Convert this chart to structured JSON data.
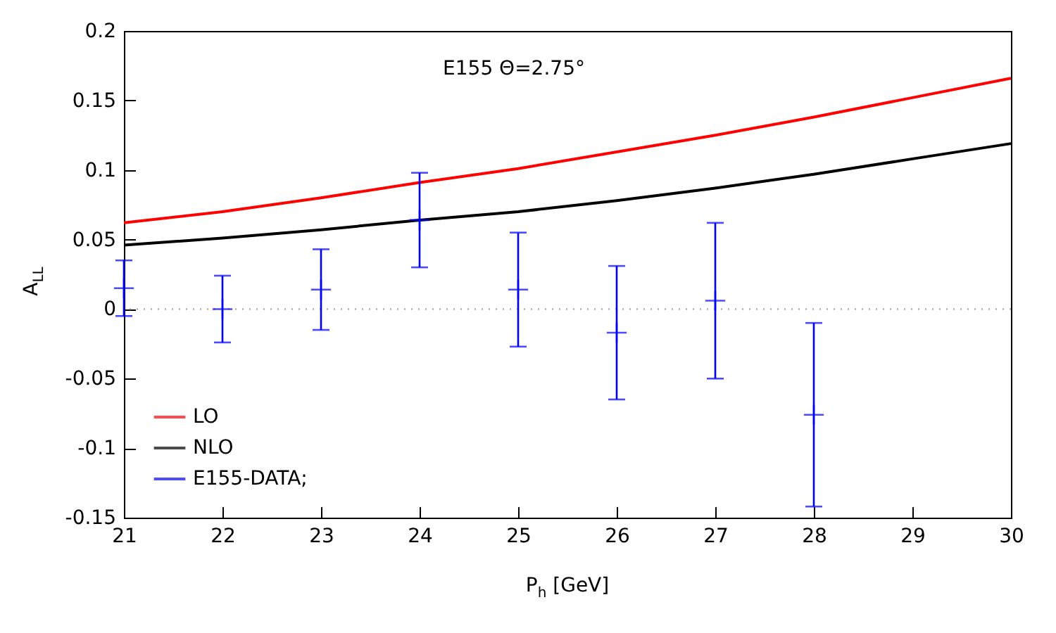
{
  "chart_data": {
    "type": "line",
    "xlabel": "P$_{h}$ [GeV]",
    "ylabel": "A$_{LL}$",
    "xlim": [
      21,
      30
    ],
    "xticks": [
      21,
      22,
      23,
      24,
      25,
      26,
      27,
      28,
      29,
      30
    ],
    "ylim": [
      -0.15,
      0.2
    ],
    "yticks": [
      -0.15,
      -0.1,
      -0.05,
      0,
      0.05,
      0.1,
      0.15,
      0.2
    ],
    "grid": false,
    "legend": "bottom left",
    "series": [
      {
        "name": "LO",
        "color": "#ff0000",
        "line_style": "solid",
        "x": [
          21,
          22,
          23,
          24,
          25,
          26,
          27,
          28,
          29,
          30
        ],
        "values": [
          0.062,
          0.07,
          0.08,
          0.091,
          0.101,
          0.113,
          0.125,
          0.138,
          0.152,
          0.166
        ]
      },
      {
        "name": "NLO",
        "color": "#000000",
        "line_style": "solid",
        "x": [
          21,
          22,
          23,
          24,
          25,
          26,
          27,
          28,
          29,
          30
        ],
        "values": [
          0.046,
          0.051,
          0.057,
          0.064,
          0.07,
          0.078,
          0.087,
          0.097,
          0.108,
          0.119
        ]
      },
      {
        "name": "E155-DATA;",
        "color": "#0000ff",
        "type": "scatter",
        "marker": "cross",
        "x": [
          21,
          22,
          23,
          24,
          25,
          26,
          27,
          28
        ],
        "values": [
          0.015,
          0,
          0.014,
          0.064,
          0.014,
          -0.017,
          0.006,
          -0.076
        ],
        "errors": [
          0.02,
          0.024,
          0.029,
          0.034,
          0.041,
          0.048,
          0.056,
          0.066
        ]
      }
    ],
    "ref_lines": [
      {
        "axis": "y",
        "value": 0,
        "color": "#a0a0a0",
        "line_style": "dotted"
      }
    ],
    "annotations": [
      "E155 Θ=2.75°"
    ]
  }
}
